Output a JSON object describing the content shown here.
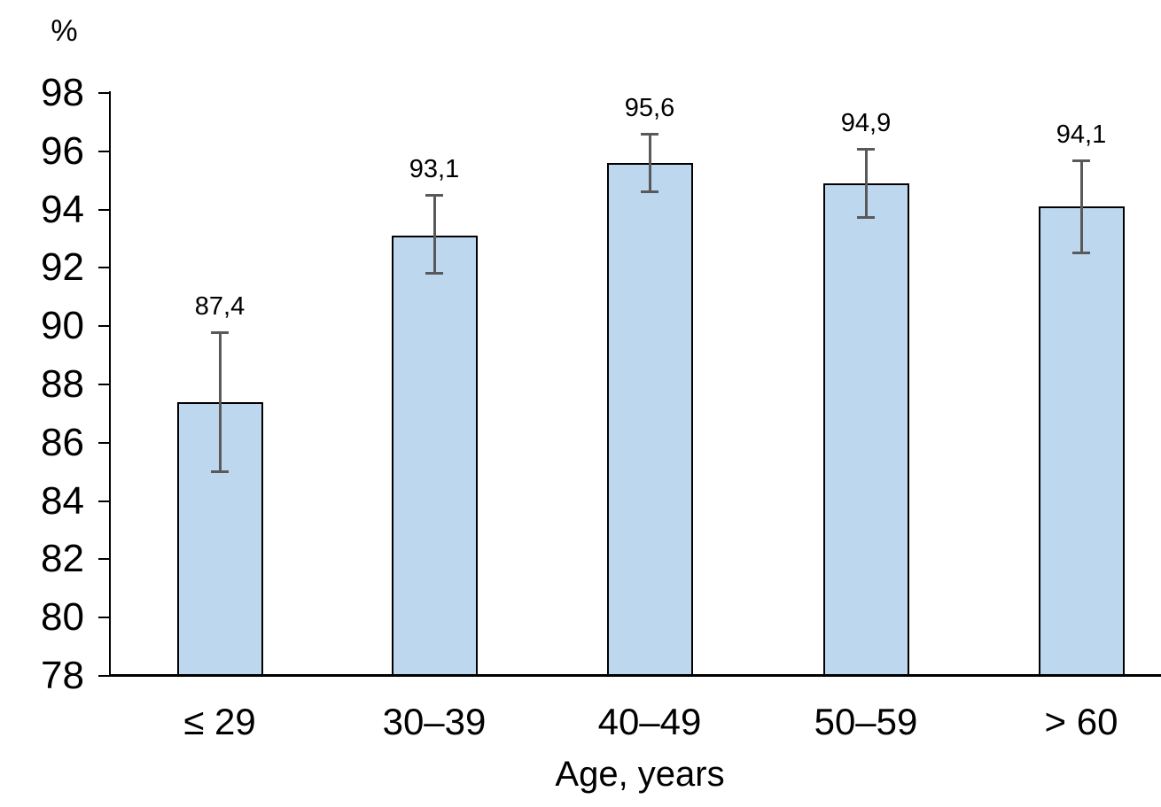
{
  "chart_data": {
    "type": "bar",
    "title": "",
    "ylabel": "%",
    "xlabel": "Age, years",
    "categories": [
      "≤ 29",
      "30–39",
      "40–49",
      "50–59",
      "> 60"
    ],
    "values": [
      87.4,
      93.1,
      95.6,
      94.9,
      94.1
    ],
    "value_labels": [
      "87,4",
      "93,1",
      "95,6",
      "94,9",
      "94,1"
    ],
    "error_upper": [
      89.8,
      94.5,
      96.6,
      96.1,
      95.7
    ],
    "error_lower": [
      85.0,
      91.8,
      94.6,
      93.7,
      92.5
    ],
    "ylim": [
      78,
      98
    ],
    "ytick_step": 2,
    "ytick_labels": [
      "98",
      "96",
      "94",
      "92",
      "90",
      "88",
      "86",
      "84",
      "82",
      "80",
      "78"
    ],
    "grid": false,
    "legend": "none",
    "colors": {
      "bar_fill": "#BDD7EE",
      "bar_border": "#000000",
      "error_bar": "#595959",
      "axis": "#000000",
      "text": "#000000",
      "background": "#FFFFFF"
    }
  }
}
